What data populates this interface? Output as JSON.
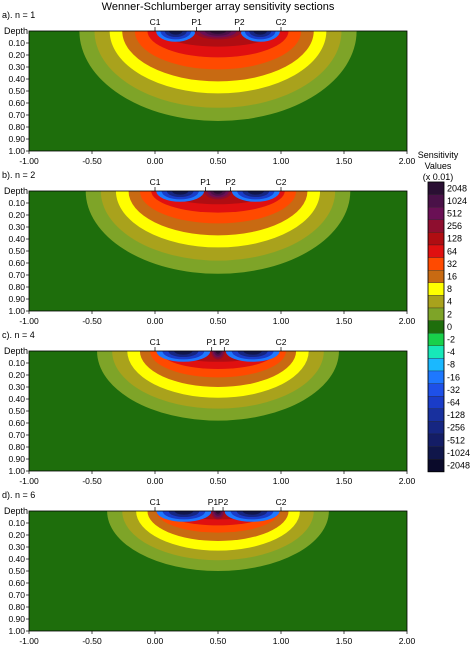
{
  "chart_data": {
    "type": "heatmap",
    "title": "Wenner-Schlumberger array sensitivity sections",
    "ylabel": "Depth",
    "xlim": [
      -1.0,
      2.0
    ],
    "ylim": [
      1.0,
      0.0
    ],
    "x_tick_labels": [
      "-1.00",
      "-0.50",
      "0.00",
      "0.50",
      "1.00",
      "1.50",
      "2.00"
    ],
    "y_tick_labels": [
      "0.10",
      "0.20",
      "0.30",
      "0.40",
      "0.50",
      "0.60",
      "0.70",
      "0.80",
      "0.90",
      "1.00"
    ],
    "panels": [
      {
        "label": "a). n = 1",
        "n": 1,
        "electrodes": [
          {
            "name": "C1",
            "x": 0.0
          },
          {
            "name": "P1",
            "x": 0.33
          },
          {
            "name": "P2",
            "x": 0.67
          },
          {
            "name": "C2",
            "x": 1.0
          }
        ]
      },
      {
        "label": "b). n = 2",
        "n": 2,
        "electrodes": [
          {
            "name": "C1",
            "x": 0.0
          },
          {
            "name": "P1",
            "x": 0.4
          },
          {
            "name": "P2",
            "x": 0.6
          },
          {
            "name": "C2",
            "x": 1.0
          }
        ]
      },
      {
        "label": "c). n = 4",
        "n": 4,
        "electrodes": [
          {
            "name": "C1",
            "x": 0.0
          },
          {
            "name": "P1",
            "x": 0.45
          },
          {
            "name": "P2",
            "x": 0.55
          },
          {
            "name": "C2",
            "x": 1.0
          }
        ]
      },
      {
        "label": "d). n = 6",
        "n": 6,
        "electrodes": [
          {
            "name": "C1",
            "x": 0.0
          },
          {
            "name": "P1",
            "x": 0.46
          },
          {
            "name": "P2",
            "x": 0.54
          },
          {
            "name": "C2",
            "x": 1.0
          }
        ]
      }
    ],
    "colorbar": {
      "title_lines": [
        "Sensitivity",
        "Values",
        "(x 0.01)"
      ],
      "levels": [
        {
          "label": "2048",
          "color": "#2a0f33"
        },
        {
          "label": "1024",
          "color": "#4a1148"
        },
        {
          "label": "512",
          "color": "#6a1055"
        },
        {
          "label": "256",
          "color": "#8e0e2f"
        },
        {
          "label": "128",
          "color": "#b00d12"
        },
        {
          "label": "64",
          "color": "#e01010"
        },
        {
          "label": "32",
          "color": "#ff4a00"
        },
        {
          "label": "16",
          "color": "#c86a12"
        },
        {
          "label": "8",
          "color": "#ffff00"
        },
        {
          "label": "4",
          "color": "#a9a21c"
        },
        {
          "label": "2",
          "color": "#7ea428"
        },
        {
          "label": "0",
          "color": "#1e6e0c"
        },
        {
          "label": "-2",
          "color": "#18d04a"
        },
        {
          "label": "-4",
          "color": "#17e8b9"
        },
        {
          "label": "-8",
          "color": "#1ab8ff"
        },
        {
          "label": "-16",
          "color": "#1e78ff"
        },
        {
          "label": "-32",
          "color": "#1e50e8"
        },
        {
          "label": "-64",
          "color": "#1a3cc8"
        },
        {
          "label": "-128",
          "color": "#18309e"
        },
        {
          "label": "-256",
          "color": "#162682"
        },
        {
          "label": "-512",
          "color": "#141d66"
        },
        {
          "label": "-1024",
          "color": "#10164a"
        },
        {
          "label": "-2048",
          "color": "#0a0a2a"
        }
      ]
    },
    "grid": false,
    "legend_position": "right"
  }
}
